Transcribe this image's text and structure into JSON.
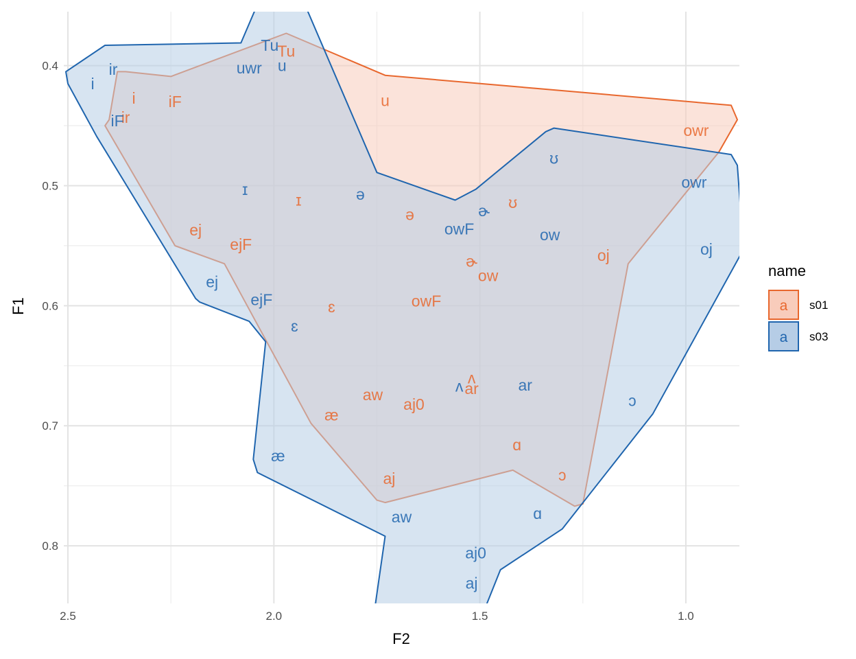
{
  "chart_data": {
    "type": "scatter",
    "xlabel": "F2",
    "ylabel": "F1",
    "x_reversed": true,
    "y_reversed": true,
    "xlim": [
      2.51,
      0.87
    ],
    "ylim": [
      0.355,
      0.848
    ],
    "x_ticks": [
      2.5,
      2.0,
      1.5,
      1.0
    ],
    "x_tick_labels": [
      "2.5",
      "2.0",
      "1.5",
      "1.0"
    ],
    "y_ticks": [
      0.4,
      0.5,
      0.6,
      0.7,
      0.8
    ],
    "y_tick_labels": [
      "0.4",
      "0.5",
      "0.6",
      "0.7",
      "0.8"
    ],
    "grid": true,
    "legend": {
      "title": "name",
      "position": "right",
      "key_glyph": "a",
      "entries": [
        {
          "name": "s01",
          "color": "#E8672D",
          "fill": "#F8CCBB"
        },
        {
          "name": "s03",
          "color": "#1F65AE",
          "fill": "#B6CDE6"
        }
      ]
    },
    "series": [
      {
        "name": "s01",
        "color": "#E8672D",
        "fill": "#F8CCBB",
        "hull": [
          [
            1.97,
            0.373
          ],
          [
            1.73,
            0.408
          ],
          [
            0.89,
            0.433
          ],
          [
            0.875,
            0.445
          ],
          [
            0.92,
            0.472
          ],
          [
            1.14,
            0.565
          ],
          [
            1.25,
            0.765
          ],
          [
            1.27,
            0.767
          ],
          [
            1.42,
            0.737
          ],
          [
            1.73,
            0.764
          ],
          [
            1.75,
            0.762
          ],
          [
            1.91,
            0.698
          ],
          [
            2.12,
            0.565
          ],
          [
            2.24,
            0.55
          ],
          [
            2.41,
            0.45
          ],
          [
            2.4,
            0.445
          ],
          [
            2.38,
            0.405
          ],
          [
            2.36,
            0.405
          ],
          [
            2.25,
            0.409
          ]
        ],
        "points": [
          {
            "label": "Tu",
            "x": 1.97,
            "y": 0.388
          },
          {
            "label": "i",
            "x": 2.34,
            "y": 0.427
          },
          {
            "label": "iF",
            "x": 2.24,
            "y": 0.43
          },
          {
            "label": "ir",
            "x": 2.36,
            "y": 0.443
          },
          {
            "label": "u",
            "x": 1.73,
            "y": 0.429
          },
          {
            "label": "owr",
            "x": 0.975,
            "y": 0.454
          },
          {
            "label": "ɪ",
            "x": 1.94,
            "y": 0.512
          },
          {
            "label": "ʊ",
            "x": 1.42,
            "y": 0.514
          },
          {
            "label": "ə",
            "x": 1.67,
            "y": 0.524
          },
          {
            "label": "ej",
            "x": 2.19,
            "y": 0.537
          },
          {
            "label": "ejF",
            "x": 2.08,
            "y": 0.549
          },
          {
            "label": "oj",
            "x": 1.2,
            "y": 0.558
          },
          {
            "label": "ɚ",
            "x": 1.52,
            "y": 0.563
          },
          {
            "label": "ow",
            "x": 1.48,
            "y": 0.575
          },
          {
            "label": "owF",
            "x": 1.63,
            "y": 0.596
          },
          {
            "label": "ɛ",
            "x": 1.86,
            "y": 0.601
          },
          {
            "label": "ʌ",
            "x": 1.52,
            "y": 0.66
          },
          {
            "label": "ar",
            "x": 1.52,
            "y": 0.669
          },
          {
            "label": "aw",
            "x": 1.76,
            "y": 0.674
          },
          {
            "label": "aj0",
            "x": 1.66,
            "y": 0.682
          },
          {
            "label": "æ",
            "x": 1.86,
            "y": 0.691
          },
          {
            "label": "ɑ",
            "x": 1.41,
            "y": 0.716
          },
          {
            "label": "ɔ",
            "x": 1.3,
            "y": 0.741
          },
          {
            "label": "aj",
            "x": 1.72,
            "y": 0.744
          }
        ]
      },
      {
        "name": "s03",
        "color": "#1F65AE",
        "fill": "#B6CDE6",
        "hull": [
          [
            2.04,
            0.349
          ],
          [
            1.93,
            0.345
          ],
          [
            1.75,
            0.489
          ],
          [
            1.56,
            0.512
          ],
          [
            1.51,
            0.503
          ],
          [
            1.34,
            0.455
          ],
          [
            1.32,
            0.452
          ],
          [
            0.89,
            0.474
          ],
          [
            0.875,
            0.483
          ],
          [
            0.86,
            0.553
          ],
          [
            1.08,
            0.69
          ],
          [
            1.3,
            0.786
          ],
          [
            1.45,
            0.82
          ],
          [
            1.52,
            0.88
          ],
          [
            1.78,
            0.912
          ],
          [
            1.73,
            0.792
          ],
          [
            2.04,
            0.739
          ],
          [
            2.05,
            0.728
          ],
          [
            2.02,
            0.63
          ],
          [
            2.06,
            0.613
          ],
          [
            2.18,
            0.597
          ],
          [
            2.19,
            0.594
          ],
          [
            2.43,
            0.459
          ],
          [
            2.5,
            0.415
          ],
          [
            2.505,
            0.405
          ],
          [
            2.41,
            0.383
          ],
          [
            2.08,
            0.381
          ]
        ],
        "points": [
          {
            "label": "Tu",
            "x": 2.01,
            "y": 0.383
          },
          {
            "label": "ir",
            "x": 2.39,
            "y": 0.403
          },
          {
            "label": "uwr",
            "x": 2.06,
            "y": 0.402
          },
          {
            "label": "u",
            "x": 1.98,
            "y": 0.4
          },
          {
            "label": "i",
            "x": 2.44,
            "y": 0.415
          },
          {
            "label": "iF",
            "x": 2.38,
            "y": 0.446
          },
          {
            "label": "ʊ",
            "x": 1.32,
            "y": 0.477
          },
          {
            "label": "owr",
            "x": 0.98,
            "y": 0.497
          },
          {
            "label": "ɪ",
            "x": 2.07,
            "y": 0.503
          },
          {
            "label": "ə",
            "x": 1.79,
            "y": 0.507
          },
          {
            "label": "ɚ",
            "x": 1.49,
            "y": 0.521
          },
          {
            "label": "owF",
            "x": 1.55,
            "y": 0.536
          },
          {
            "label": "ow",
            "x": 1.33,
            "y": 0.541
          },
          {
            "label": "oj",
            "x": 0.95,
            "y": 0.553
          },
          {
            "label": "ej",
            "x": 2.15,
            "y": 0.58
          },
          {
            "label": "ejF",
            "x": 2.03,
            "y": 0.595
          },
          {
            "label": "ɛ",
            "x": 1.95,
            "y": 0.617
          },
          {
            "label": "ar",
            "x": 1.39,
            "y": 0.666
          },
          {
            "label": "ʌ",
            "x": 1.55,
            "y": 0.667
          },
          {
            "label": "ɔ",
            "x": 1.13,
            "y": 0.679
          },
          {
            "label": "æ",
            "x": 1.99,
            "y": 0.725
          },
          {
            "label": "ɑ",
            "x": 1.36,
            "y": 0.773
          },
          {
            "label": "aw",
            "x": 1.69,
            "y": 0.776
          },
          {
            "label": "aj0",
            "x": 1.51,
            "y": 0.806
          },
          {
            "label": "aj",
            "x": 1.52,
            "y": 0.831
          }
        ]
      }
    ]
  }
}
